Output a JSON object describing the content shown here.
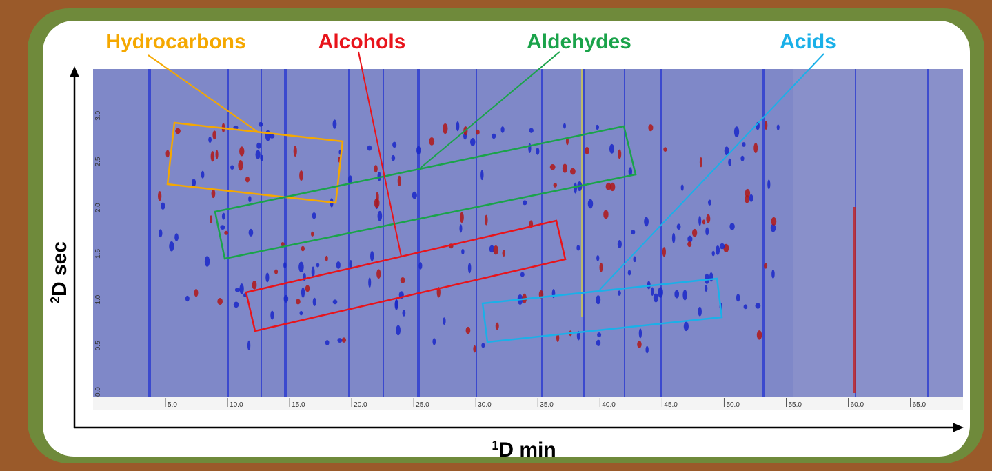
{
  "annotations": {
    "hydrocarbons": "Hydrocarbons",
    "alcohols": "Alcohols",
    "aldehydes": "Aldehydes",
    "acids": "Acids"
  },
  "axes": {
    "x_label": {
      "sup": "1",
      "text": "D min"
    },
    "y_label": {
      "sup": "2",
      "text": "D sec"
    },
    "x_ticks": [
      "5.0",
      "10.0",
      "15.0",
      "20.0",
      "25.0",
      "30.0",
      "35.0",
      "40.0",
      "45.0",
      "50.0",
      "55.0",
      "60.0",
      "65.0"
    ],
    "y_ticks": [
      "0.0",
      "0.5",
      "1.0",
      "1.5",
      "2.0",
      "2.5",
      "3.0"
    ]
  }
}
